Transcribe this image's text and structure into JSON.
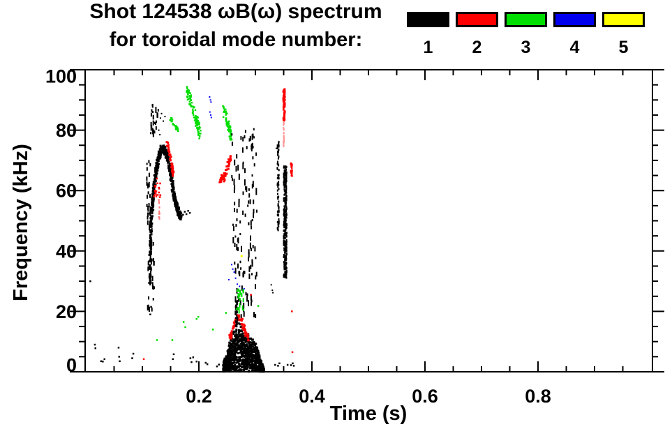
{
  "title": {
    "line1": "Shot 124538 ωB(ω) spectrum",
    "line2": "for toroidal mode number:"
  },
  "legend": {
    "position": "top-right",
    "items": [
      {
        "label": "1",
        "color": "#000000"
      },
      {
        "label": "2",
        "color": "#ff0000"
      },
      {
        "label": "3",
        "color": "#00dd00"
      },
      {
        "label": "4",
        "color": "#0000ee"
      },
      {
        "label": "5",
        "color": "#ffff00"
      }
    ]
  },
  "chart_data": {
    "type": "scatter",
    "title": "Shot 124538 ωB(ω) spectrum for toroidal mode number: 1 2 3 4 5",
    "xlabel": "Time (s)",
    "ylabel": "Frequency (kHz)",
    "xlim": [
      0,
      1.0
    ],
    "ylim": [
      0,
      100
    ],
    "grid": false,
    "xticks": {
      "major": [
        0.2,
        0.4,
        0.6,
        0.8
      ],
      "major_labels": [
        "0.2",
        "0.4",
        "0.6",
        "0.8"
      ],
      "minor_step": 0.05
    },
    "yticks": {
      "major": [
        0,
        20,
        40,
        60,
        80,
        100
      ],
      "major_labels": [
        "0",
        "20",
        "40",
        "60",
        "80",
        "100"
      ],
      "minor_step": 5
    },
    "mode_colors": {
      "1": "#000000",
      "2": "#ff0000",
      "3": "#00dd00",
      "4": "#0000ee",
      "5": "#ffff00"
    },
    "features": [
      {
        "name": "n1-pre-column-low",
        "mode": 1,
        "color": "#000000",
        "kind": "box",
        "t": [
          0.108,
          0.12
        ],
        "f": [
          20,
          48
        ],
        "n": 34,
        "s": 2,
        "dash": true,
        "seed": 11
      },
      {
        "name": "n1-arch-left-edge",
        "mode": 1,
        "color": "#000000",
        "kind": "box",
        "t": [
          0.1065,
          0.113
        ],
        "f": [
          48,
          76
        ],
        "n": 26,
        "s": 2,
        "dash": true,
        "seed": 12
      },
      {
        "name": "n1-column-high",
        "mode": 1,
        "color": "#000000",
        "kind": "box",
        "t": [
          0.113,
          0.127
        ],
        "f": [
          79,
          89.5
        ],
        "n": 24,
        "s": 2,
        "dash": true,
        "seed": 13
      },
      {
        "name": "n1-dots-above-arch",
        "mode": 1,
        "color": "#000000",
        "kind": "dots",
        "s": 2,
        "pts": [
          [
            0.132,
            84
          ],
          [
            0.134,
            85.5
          ],
          [
            0.137,
            83
          ],
          [
            0.14,
            84.5
          ],
          [
            0.129,
            80
          ],
          [
            0.131,
            78.5
          ]
        ]
      },
      {
        "name": "n1-chirp-arch",
        "mode": 1,
        "color": "#000000",
        "kind": "path",
        "hw": 1.4,
        "n": 560,
        "s": 3,
        "seed": 14,
        "pts": [
          [
            0.1115,
            30
          ],
          [
            0.112,
            38
          ],
          [
            0.113,
            46
          ],
          [
            0.115,
            53
          ],
          [
            0.117,
            58
          ],
          [
            0.119,
            62
          ],
          [
            0.122,
            66
          ],
          [
            0.125,
            69.5
          ],
          [
            0.128,
            72
          ],
          [
            0.132,
            74
          ],
          [
            0.136,
            74.3
          ],
          [
            0.14,
            72.5
          ],
          [
            0.144,
            69.5
          ],
          [
            0.148,
            66
          ],
          [
            0.151,
            62.5
          ],
          [
            0.154,
            59
          ],
          [
            0.157,
            56.5
          ],
          [
            0.16,
            54.5
          ],
          [
            0.163,
            52.8
          ],
          [
            0.166,
            52
          ]
        ]
      },
      {
        "name": "n1-arch-tail",
        "mode": 1,
        "color": "#000000",
        "kind": "dots",
        "s": 2.5,
        "pts": [
          [
            0.169,
            52.5
          ],
          [
            0.172,
            52
          ],
          [
            0.175,
            53
          ],
          [
            0.178,
            52.2
          ],
          [
            0.181,
            53.3
          ],
          [
            0.184,
            52.6
          ]
        ]
      },
      {
        "name": "n2-falling-chirp",
        "mode": 2,
        "color": "#ff0000",
        "kind": "path",
        "hw": 1.0,
        "n": 42,
        "s": 3,
        "seed": 21,
        "pts": [
          [
            0.1425,
            76
          ],
          [
            0.146,
            73
          ],
          [
            0.149,
            70
          ],
          [
            0.1515,
            67.5
          ],
          [
            0.153,
            65.5
          ]
        ]
      },
      {
        "name": "n2-scatter-under-peak",
        "mode": 2,
        "color": "#ff0000",
        "kind": "box",
        "t": [
          0.119,
          0.133
        ],
        "f": [
          58,
          65
        ],
        "n": 20,
        "s": 2.5,
        "seed": 22
      },
      {
        "name": "n2-thin-vline",
        "mode": 2,
        "color": "#ff7777",
        "kind": "vband",
        "t": 0.1285,
        "f": [
          51,
          59
        ],
        "w": 1.2,
        "n": 14,
        "seed": 23
      },
      {
        "name": "n3-dash-mid",
        "mode": 3,
        "color": "#00dd00",
        "kind": "path",
        "hw": 0.7,
        "n": 26,
        "s": 2.5,
        "seed": 31,
        "pts": [
          [
            0.148,
            84.2
          ],
          [
            0.153,
            82.6
          ],
          [
            0.158,
            81
          ],
          [
            0.161,
            80.2
          ]
        ]
      },
      {
        "name": "n3-cluster-high",
        "mode": 3,
        "color": "#00dd00",
        "kind": "path",
        "hw": 2.2,
        "n": 95,
        "s": 2.5,
        "seed": 32,
        "pts": [
          [
            0.177,
            93.5
          ],
          [
            0.182,
            91
          ],
          [
            0.187,
            88
          ],
          [
            0.192,
            84.5
          ],
          [
            0.197,
            81.5
          ],
          [
            0.201,
            79.5
          ]
        ]
      },
      {
        "name": "n3-cluster-2",
        "mode": 3,
        "color": "#00dd00",
        "kind": "path",
        "hw": 1.8,
        "n": 60,
        "s": 2.5,
        "seed": 33,
        "pts": [
          [
            0.242,
            87
          ],
          [
            0.246,
            85
          ],
          [
            0.25,
            82.5
          ],
          [
            0.253,
            80
          ],
          [
            0.2555,
            78
          ]
        ]
      },
      {
        "name": "n4-specks-high",
        "mode": 4,
        "color": "#0000ee",
        "kind": "dots",
        "s": 2,
        "pts": [
          [
            0.219,
            91
          ],
          [
            0.2205,
            90
          ],
          [
            0.2215,
            89.3
          ],
          [
            0.2195,
            86
          ],
          [
            0.221,
            85
          ],
          [
            0.222,
            84.2
          ]
        ]
      },
      {
        "name": "n1-speckle-field",
        "mode": 1,
        "color": "#000000",
        "kind": "box",
        "t": [
          0.257,
          0.302
        ],
        "f": [
          19,
          81.5
        ],
        "n": 130,
        "s": 2,
        "dash": true,
        "seed": 15
      },
      {
        "name": "n2-rising-chirp",
        "mode": 2,
        "color": "#ff0000",
        "kind": "path",
        "hw": 1.0,
        "n": 55,
        "s": 3,
        "seed": 24,
        "pts": [
          [
            0.2355,
            63
          ],
          [
            0.239,
            65
          ],
          [
            0.2425,
            64.2
          ],
          [
            0.246,
            66.5
          ],
          [
            0.249,
            68
          ],
          [
            0.2525,
            70
          ],
          [
            0.2555,
            71.5
          ]
        ]
      },
      {
        "name": "n1-burst-blob",
        "mode": 1,
        "color": "#000000",
        "kind": "blob",
        "t": [
          0.241,
          0.3135
        ],
        "base": 0.4,
        "n": 950,
        "s": 3,
        "seed": 16,
        "ridge": [
          [
            0.241,
            3
          ],
          [
            0.248,
            6
          ],
          [
            0.252,
            9
          ],
          [
            0.256,
            11.5
          ],
          [
            0.262,
            13
          ],
          [
            0.268,
            14.3
          ],
          [
            0.272,
            15.3
          ],
          [
            0.278,
            13
          ],
          [
            0.285,
            12
          ],
          [
            0.292,
            11
          ],
          [
            0.298,
            9.5
          ],
          [
            0.303,
            7
          ],
          [
            0.308,
            4
          ],
          [
            0.3135,
            1.2
          ]
        ]
      },
      {
        "name": "n2-arc-over-burst",
        "mode": 2,
        "color": "#ff0000",
        "kind": "path",
        "hw": 1.0,
        "n": 70,
        "s": 3,
        "seed": 25,
        "pts": [
          [
            0.252,
            11
          ],
          [
            0.257,
            14
          ],
          [
            0.262,
            16.5
          ],
          [
            0.267,
            18.3
          ],
          [
            0.272,
            18
          ],
          [
            0.277,
            15.5
          ],
          [
            0.282,
            13
          ],
          [
            0.286,
            10.8
          ]
        ]
      },
      {
        "name": "n1-spike-above-burst",
        "mode": 1,
        "color": "#000000",
        "kind": "vband",
        "t": 0.2655,
        "f": [
          15,
          24
        ],
        "w": 3,
        "n": 34,
        "seed": 17
      },
      {
        "name": "n3-dashes-above-burst",
        "mode": 3,
        "color": "#00dd00",
        "kind": "box",
        "t": [
          0.265,
          0.278
        ],
        "f": [
          20,
          27.7
        ],
        "n": 16,
        "s": 2,
        "dash": true,
        "seed": 34
      },
      {
        "name": "n4-specks-low",
        "mode": 4,
        "color": "#0000ee",
        "kind": "dots",
        "s": 2,
        "pts": [
          [
            0.258,
            35.5
          ],
          [
            0.26,
            34
          ],
          [
            0.2625,
            33
          ],
          [
            0.265,
            31
          ],
          [
            0.253,
            30.5
          ],
          [
            0.268,
            29
          ],
          [
            0.272,
            28.3
          ],
          [
            0.28,
            27.5
          ]
        ]
      },
      {
        "name": "n5-speck",
        "mode": 5,
        "color": "#ffff00",
        "kind": "dots",
        "s": 3,
        "pts": [
          [
            0.2755,
            38.3
          ]
        ]
      },
      {
        "name": "n3-low-dots",
        "mode": 3,
        "color": "#00dd00",
        "kind": "dots",
        "s": 2.5,
        "pts": [
          [
            0.126,
            10.5
          ],
          [
            0.153,
            10.5
          ],
          [
            0.173,
            16.5
          ],
          [
            0.176,
            14.8
          ],
          [
            0.196,
            17.5
          ],
          [
            0.199,
            18.2
          ],
          [
            0.225,
            14
          ],
          [
            0.248,
            19.5
          ],
          [
            0.279,
            20.5
          ],
          [
            0.305,
            21.8
          ]
        ]
      },
      {
        "name": "n1-vline-a",
        "mode": 1,
        "color": "#000000",
        "kind": "vband",
        "t": 0.339,
        "f": [
          46,
          76.5
        ],
        "w": 2.5,
        "n": 78,
        "seed": 18
      },
      {
        "name": "n1-vline-b",
        "mode": 1,
        "color": "#000000",
        "kind": "vband",
        "t": 0.3515,
        "f": [
          31.5,
          68.5
        ],
        "w": 4.5,
        "n": 330,
        "seed": 19
      },
      {
        "name": "n1-dots-mid-right",
        "mode": 1,
        "color": "#000000",
        "kind": "dots",
        "s": 2,
        "pts": [
          [
            0.337,
            74
          ],
          [
            0.34,
            72.5
          ],
          [
            0.3415,
            75
          ],
          [
            0.328,
            28.8
          ],
          [
            0.33,
            27
          ],
          [
            0.331,
            26.2
          ]
        ]
      },
      {
        "name": "n2-vline-high",
        "mode": 2,
        "color": "#ff0000",
        "kind": "vband",
        "t": 0.3495,
        "f": [
          83.5,
          94
        ],
        "w": 3,
        "n": 90,
        "seed": 26
      },
      {
        "name": "n2-vline-faint",
        "mode": 2,
        "color": "#ff9999",
        "kind": "vband",
        "t": 0.349,
        "f": [
          75,
          83.5
        ],
        "w": 1.2,
        "n": 22,
        "seed": 27
      },
      {
        "name": "n2-tick-mid",
        "mode": 2,
        "color": "#ff0000",
        "kind": "vband",
        "t": 0.3625,
        "f": [
          65,
          69.5
        ],
        "w": 2.5,
        "n": 22,
        "seed": 28
      },
      {
        "name": "n2-low-dots",
        "mode": 2,
        "color": "#ff0000",
        "kind": "dots",
        "s": 2.5,
        "pts": [
          [
            0.1025,
            4.2
          ],
          [
            0.292,
            25.5
          ],
          [
            0.3645,
            20
          ],
          [
            0.3655,
            6.5
          ]
        ]
      },
      {
        "name": "n1-baseline-dots",
        "mode": 1,
        "color": "#000000",
        "kind": "dots",
        "s": 2.5,
        "pts": [
          [
            0.008,
            30
          ],
          [
            0.016,
            9
          ],
          [
            0.017,
            7.8
          ],
          [
            0.027,
            3.5
          ],
          [
            0.03,
            3.4
          ],
          [
            0.033,
            4.2
          ],
          [
            0.058,
            8
          ],
          [
            0.059,
            5
          ],
          [
            0.06,
            3.5
          ],
          [
            0.082,
            4.5
          ],
          [
            0.084,
            6
          ],
          [
            0.114,
            19
          ],
          [
            0.1155,
            21.5
          ],
          [
            0.154,
            4.2
          ],
          [
            0.1555,
            5.8
          ],
          [
            0.185,
            4.5
          ],
          [
            0.187,
            3.2
          ],
          [
            0.19,
            4.8
          ],
          [
            0.196,
            3.4
          ],
          [
            0.212,
            3
          ],
          [
            0.215,
            2.5
          ],
          [
            0.232,
            1.8
          ],
          [
            0.2355,
            2.4
          ],
          [
            0.335,
            2.3
          ],
          [
            0.34,
            2
          ],
          [
            0.3425,
            2.8
          ],
          [
            0.357,
            2.3
          ],
          [
            0.363,
            2.2
          ],
          [
            0.366,
            2.8
          ],
          [
            0.368,
            2
          ]
        ]
      }
    ]
  }
}
